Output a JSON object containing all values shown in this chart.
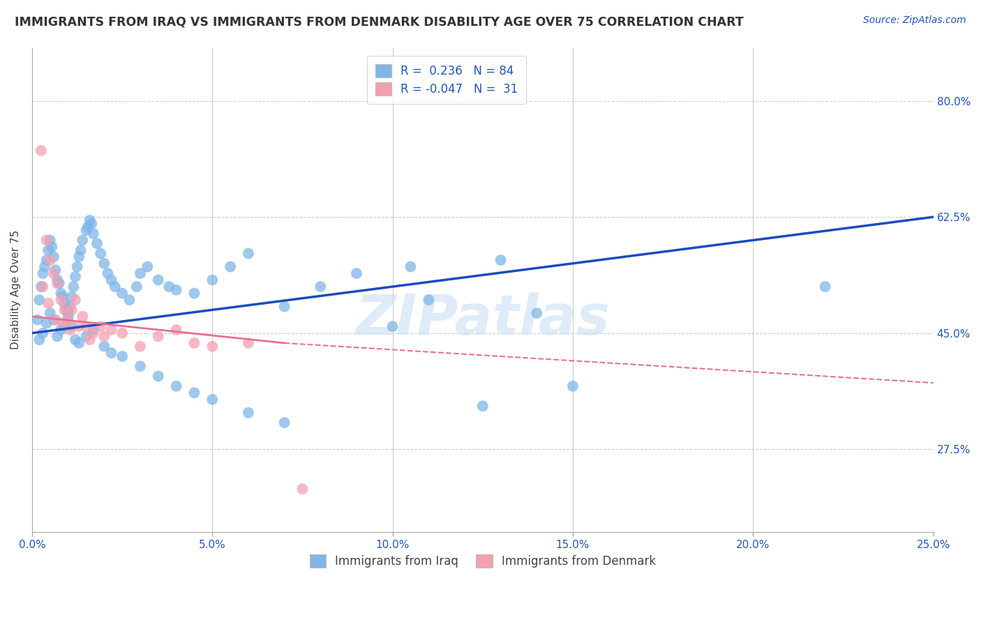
{
  "title": "IMMIGRANTS FROM IRAQ VS IMMIGRANTS FROM DENMARK DISABILITY AGE OVER 75 CORRELATION CHART",
  "source": "Source: ZipAtlas.com",
  "xlabel_vals": [
    0.0,
    5.0,
    10.0,
    15.0,
    20.0,
    25.0
  ],
  "ylabel_vals": [
    27.5,
    45.0,
    62.5,
    80.0
  ],
  "ylabel_label": "Disability Age Over 75",
  "xlim": [
    0.0,
    25.0
  ],
  "ylim": [
    15.0,
    88.0
  ],
  "legend_iraq_label": "Immigrants from Iraq",
  "legend_denmark_label": "Immigrants from Denmark",
  "R_iraq": 0.236,
  "N_iraq": 84,
  "R_denmark": -0.047,
  "N_denmark": 31,
  "iraq_color": "#7EB6E8",
  "denmark_color": "#F4A0B0",
  "iraq_line_color": "#1A4CC0",
  "denmark_line_color": "#E87090",
  "iraq_line_y0": 45.0,
  "iraq_line_y1": 62.5,
  "denmark_solid_x0": 0.0,
  "denmark_solid_x1": 7.0,
  "denmark_solid_y0": 47.5,
  "denmark_solid_y1": 43.5,
  "denmark_dashed_x0": 7.0,
  "denmark_dashed_x1": 25.0,
  "denmark_dashed_y0": 43.5,
  "denmark_dashed_y1": 37.5,
  "iraq_scatter_x": [
    0.15,
    0.2,
    0.25,
    0.3,
    0.35,
    0.4,
    0.45,
    0.5,
    0.55,
    0.6,
    0.65,
    0.7,
    0.75,
    0.8,
    0.85,
    0.9,
    0.95,
    1.0,
    1.05,
    1.1,
    1.15,
    1.2,
    1.25,
    1.3,
    1.35,
    1.4,
    1.5,
    1.55,
    1.6,
    1.65,
    1.7,
    1.8,
    1.9,
    2.0,
    2.1,
    2.2,
    2.3,
    2.5,
    2.7,
    2.9,
    3.0,
    3.2,
    3.5,
    3.8,
    4.0,
    4.5,
    5.0,
    5.5,
    6.0,
    7.0,
    8.0,
    9.0,
    10.0,
    11.0,
    13.0,
    22.0,
    0.2,
    0.3,
    0.4,
    0.5,
    0.6,
    0.7,
    0.8,
    0.9,
    1.0,
    1.1,
    1.2,
    1.3,
    1.5,
    1.7,
    2.0,
    2.2,
    2.5,
    3.0,
    3.5,
    4.0,
    4.5,
    5.0,
    6.0,
    7.0,
    10.5,
    14.0,
    12.5,
    15.0
  ],
  "iraq_scatter_y": [
    47.0,
    50.0,
    52.0,
    54.0,
    55.0,
    56.0,
    57.5,
    59.0,
    58.0,
    56.5,
    54.5,
    53.0,
    52.5,
    51.0,
    50.5,
    49.5,
    48.5,
    48.0,
    49.0,
    50.5,
    52.0,
    53.5,
    55.0,
    56.5,
    57.5,
    59.0,
    60.5,
    61.0,
    62.0,
    61.5,
    60.0,
    58.5,
    57.0,
    55.5,
    54.0,
    53.0,
    52.0,
    51.0,
    50.0,
    52.0,
    54.0,
    55.0,
    53.0,
    52.0,
    51.5,
    51.0,
    53.0,
    55.0,
    57.0,
    49.0,
    52.0,
    54.0,
    46.0,
    50.0,
    56.0,
    52.0,
    44.0,
    45.0,
    46.5,
    48.0,
    47.0,
    44.5,
    45.5,
    46.0,
    47.5,
    46.0,
    44.0,
    43.5,
    44.5,
    45.5,
    43.0,
    42.0,
    41.5,
    40.0,
    38.5,
    37.0,
    36.0,
    35.0,
    33.0,
    31.5,
    55.0,
    48.0,
    34.0,
    37.0
  ],
  "denmark_scatter_x": [
    0.25,
    0.4,
    0.5,
    0.6,
    0.7,
    0.8,
    0.9,
    1.0,
    1.1,
    1.2,
    1.4,
    1.5,
    1.7,
    1.9,
    2.0,
    2.2,
    2.5,
    3.0,
    3.5,
    4.0,
    4.5,
    5.0,
    6.0,
    7.5,
    0.3,
    0.45,
    0.65,
    0.85,
    1.05,
    1.3,
    1.6
  ],
  "denmark_scatter_y": [
    72.5,
    59.0,
    56.0,
    54.0,
    52.5,
    50.0,
    48.5,
    47.0,
    48.5,
    50.0,
    47.5,
    46.0,
    45.0,
    46.0,
    44.5,
    45.5,
    45.0,
    43.0,
    44.5,
    45.5,
    43.5,
    43.0,
    43.5,
    21.5,
    52.0,
    49.5,
    47.0,
    46.5,
    45.5,
    46.0,
    44.0
  ],
  "watermark": "ZIPatlas",
  "background_color": "#ffffff",
  "grid_color": "#cccccc"
}
